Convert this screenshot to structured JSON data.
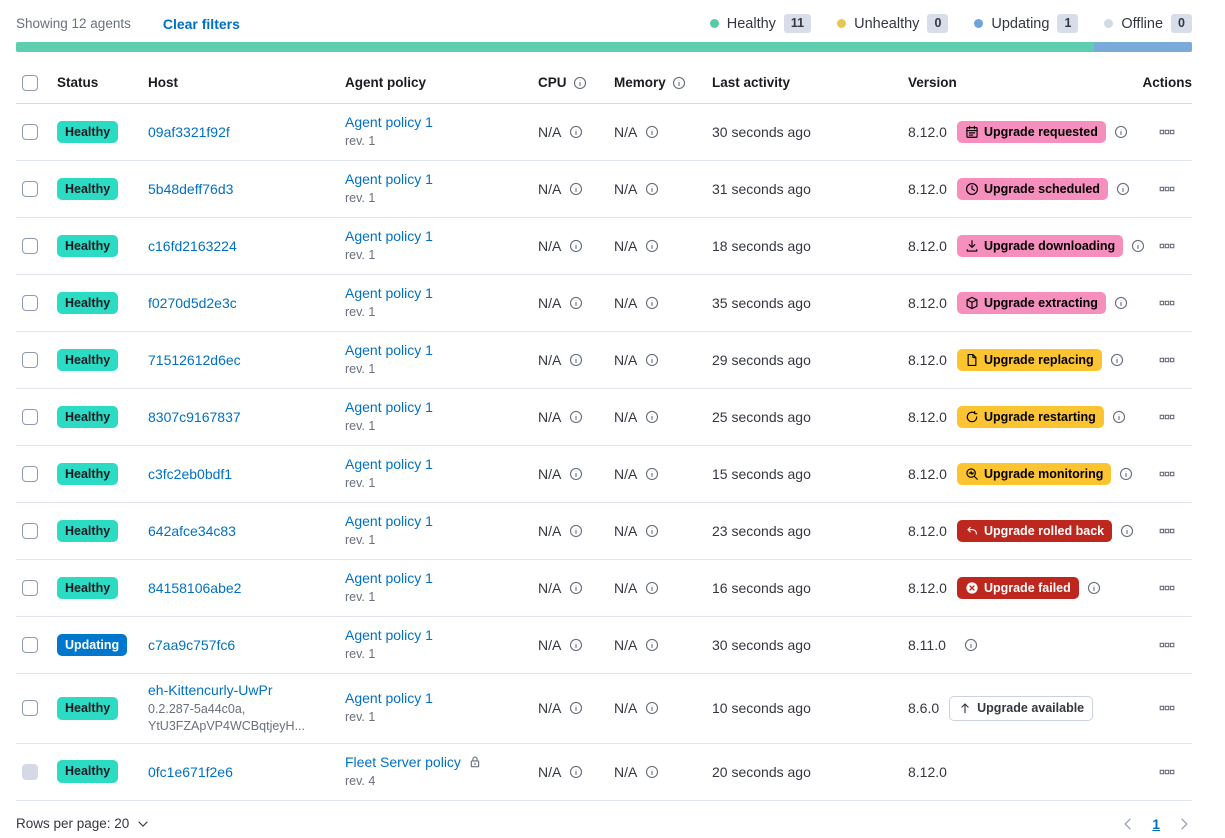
{
  "toolbar": {
    "showing": "Showing 12 agents",
    "clear_filters": "Clear filters"
  },
  "legend": [
    {
      "label": "Healthy",
      "count": "11",
      "color": "#57CBA6"
    },
    {
      "label": "Unhealthy",
      "count": "0",
      "color": "#E7C750"
    },
    {
      "label": "Updating",
      "count": "1",
      "color": "#6FA3D9"
    },
    {
      "label": "Offline",
      "count": "0",
      "color": "#D3DAE6"
    }
  ],
  "health_bar": {
    "segments": [
      {
        "color": "#5DCFAE",
        "fraction": 11
      },
      {
        "color": "#79AAD9",
        "fraction": 1
      }
    ]
  },
  "table": {
    "columns": [
      {
        "label": "Status"
      },
      {
        "label": "Host"
      },
      {
        "label": "Agent policy"
      },
      {
        "label": "CPU",
        "info": true
      },
      {
        "label": "Memory",
        "info": true
      },
      {
        "label": "Last activity"
      },
      {
        "label": "Version"
      },
      {
        "label": "Actions"
      }
    ],
    "rows": [
      {
        "status": {
          "label": "Healthy",
          "type": "healthy"
        },
        "host": {
          "name": "09af3321f92f"
        },
        "policy": {
          "name": "Agent policy 1",
          "rev": "rev. 1"
        },
        "cpu": "N/A",
        "memory": "N/A",
        "last_activity": "30 seconds ago",
        "version": "8.12.0",
        "upgrade": {
          "label": "Upgrade requested",
          "icon": "calendar",
          "style": "pink"
        },
        "version_info": true
      },
      {
        "status": {
          "label": "Healthy",
          "type": "healthy"
        },
        "host": {
          "name": "5b48deff76d3"
        },
        "policy": {
          "name": "Agent policy 1",
          "rev": "rev. 1"
        },
        "cpu": "N/A",
        "memory": "N/A",
        "last_activity": "31 seconds ago",
        "version": "8.12.0",
        "upgrade": {
          "label": "Upgrade scheduled",
          "icon": "clock",
          "style": "pink"
        },
        "version_info": true
      },
      {
        "status": {
          "label": "Healthy",
          "type": "healthy"
        },
        "host": {
          "name": "c16fd2163224"
        },
        "policy": {
          "name": "Agent policy 1",
          "rev": "rev. 1"
        },
        "cpu": "N/A",
        "memory": "N/A",
        "last_activity": "18 seconds ago",
        "version": "8.12.0",
        "upgrade": {
          "label": "Upgrade downloading",
          "icon": "download",
          "style": "pink"
        },
        "version_info": true
      },
      {
        "status": {
          "label": "Healthy",
          "type": "healthy"
        },
        "host": {
          "name": "f0270d5d2e3c"
        },
        "policy": {
          "name": "Agent policy 1",
          "rev": "rev. 1"
        },
        "cpu": "N/A",
        "memory": "N/A",
        "last_activity": "35 seconds ago",
        "version": "8.12.0",
        "upgrade": {
          "label": "Upgrade extracting",
          "icon": "package",
          "style": "pink"
        },
        "version_info": true
      },
      {
        "status": {
          "label": "Healthy",
          "type": "healthy"
        },
        "host": {
          "name": "71512612d6ec"
        },
        "policy": {
          "name": "Agent policy 1",
          "rev": "rev. 1"
        },
        "cpu": "N/A",
        "memory": "N/A",
        "last_activity": "29 seconds ago",
        "version": "8.12.0",
        "upgrade": {
          "label": "Upgrade replacing",
          "icon": "document",
          "style": "yellow"
        },
        "version_info": true
      },
      {
        "status": {
          "label": "Healthy",
          "type": "healthy"
        },
        "host": {
          "name": "8307c9167837"
        },
        "policy": {
          "name": "Agent policy 1",
          "rev": "rev. 1"
        },
        "cpu": "N/A",
        "memory": "N/A",
        "last_activity": "25 seconds ago",
        "version": "8.12.0",
        "upgrade": {
          "label": "Upgrade restarting",
          "icon": "refresh",
          "style": "yellow"
        },
        "version_info": true
      },
      {
        "status": {
          "label": "Healthy",
          "type": "healthy"
        },
        "host": {
          "name": "c3fc2eb0bdf1"
        },
        "policy": {
          "name": "Agent policy 1",
          "rev": "rev. 1"
        },
        "cpu": "N/A",
        "memory": "N/A",
        "last_activity": "15 seconds ago",
        "version": "8.12.0",
        "upgrade": {
          "label": "Upgrade monitoring",
          "icon": "inspect",
          "style": "yellow"
        },
        "version_info": true
      },
      {
        "status": {
          "label": "Healthy",
          "type": "healthy"
        },
        "host": {
          "name": "642afce34c83"
        },
        "policy": {
          "name": "Agent policy 1",
          "rev": "rev. 1"
        },
        "cpu": "N/A",
        "memory": "N/A",
        "last_activity": "23 seconds ago",
        "version": "8.12.0",
        "upgrade": {
          "label": "Upgrade rolled back",
          "icon": "return",
          "style": "red"
        },
        "version_info": true
      },
      {
        "status": {
          "label": "Healthy",
          "type": "healthy"
        },
        "host": {
          "name": "84158106abe2"
        },
        "policy": {
          "name": "Agent policy 1",
          "rev": "rev. 1"
        },
        "cpu": "N/A",
        "memory": "N/A",
        "last_activity": "16 seconds ago",
        "version": "8.12.0",
        "upgrade": {
          "label": "Upgrade failed",
          "icon": "error",
          "style": "red"
        },
        "version_info": true
      },
      {
        "status": {
          "label": "Updating",
          "type": "updating"
        },
        "host": {
          "name": "c7aa9c757fc6"
        },
        "policy": {
          "name": "Agent policy 1",
          "rev": "rev. 1"
        },
        "cpu": "N/A",
        "memory": "N/A",
        "last_activity": "30 seconds ago",
        "version": "8.11.0",
        "version_info": true
      },
      {
        "status": {
          "label": "Healthy",
          "type": "healthy"
        },
        "host": {
          "name": "eh-Kittencurly-UwPr",
          "sub": "0.2.287-5a44c0a,\nYtU3FZApVP4WCBqtjeyH..."
        },
        "policy": {
          "name": "Agent policy 1",
          "rev": "rev. 1"
        },
        "cpu": "N/A",
        "memory": "N/A",
        "last_activity": "10 seconds ago",
        "version": "8.6.0",
        "upgrade": {
          "label": "Upgrade available",
          "icon": "arrow-up",
          "style": "outline"
        },
        "version_info": false
      },
      {
        "status": {
          "label": "Healthy",
          "type": "healthy"
        },
        "host": {
          "name": "0fc1e671f2e6"
        },
        "policy": {
          "name": "Fleet Server policy",
          "rev": "rev. 4",
          "locked": true
        },
        "cpu": "N/A",
        "memory": "N/A",
        "last_activity": "20 seconds ago",
        "version": "8.12.0",
        "version_info": false,
        "checkbox_disabled": true
      }
    ]
  },
  "pagination": {
    "rows_per_page": "Rows per page: 20",
    "page": "1"
  }
}
